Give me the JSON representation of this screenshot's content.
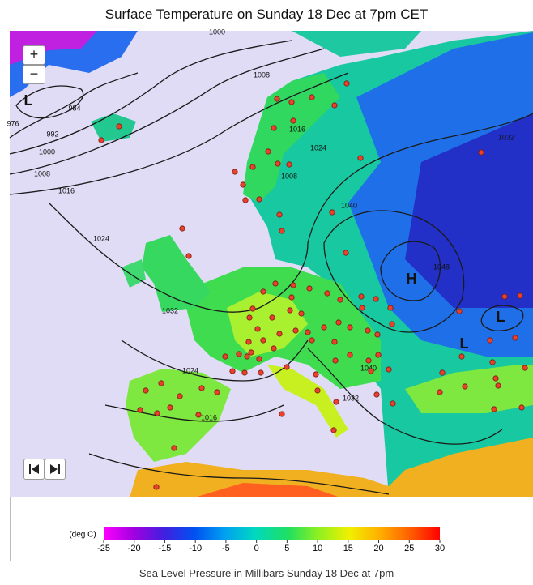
{
  "header": {
    "title": "Surface Temperature on Sunday 18 Dec at 7pm CET"
  },
  "controls": {
    "zoom_in": "+",
    "zoom_out": "−"
  },
  "isobar_labels": [
    "1000",
    "1008",
    "984",
    "992",
    "1000",
    "1008",
    "1016",
    "1024",
    "976",
    "1016",
    "1024",
    "1008",
    "1040",
    "1048",
    "1032",
    "1032",
    "1024",
    "1016",
    "1040",
    "1032"
  ],
  "pressure_centers": [
    "L",
    "H",
    "L",
    "L"
  ],
  "legend": {
    "unit": "(deg C)",
    "ticks": [
      -25,
      -20,
      -15,
      -10,
      -5,
      0,
      5,
      10,
      15,
      20,
      25,
      30
    ]
  },
  "caption": "Sea Level Pressure in Millibars Sunday 18 Dec at 7pm"
}
